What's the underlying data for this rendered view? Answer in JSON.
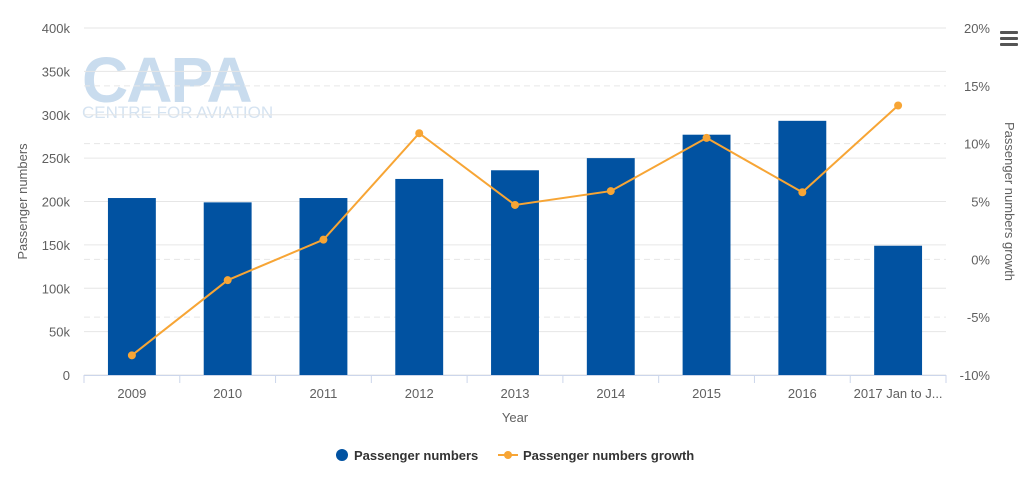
{
  "watermark": {
    "brand": "CAPA",
    "tagline": "CENTRE FOR AVIATION"
  },
  "menu": {
    "icon": "hamburger-menu-icon"
  },
  "chart_data": {
    "type": "bar",
    "categories": [
      "2009",
      "2010",
      "2011",
      "2012",
      "2013",
      "2014",
      "2015",
      "2016",
      "2017 Jan to J..."
    ],
    "xlabel": "Year",
    "ylabel": "Passenger numbers",
    "y2label": "Passenger numbers growth",
    "ylim": [
      0,
      400000
    ],
    "y2lim": [
      -10,
      20
    ],
    "y_ticks": [
      "0",
      "50k",
      "100k",
      "150k",
      "200k",
      "250k",
      "300k",
      "350k",
      "400k"
    ],
    "y2_ticks": [
      "-10%",
      "-5%",
      "0%",
      "5%",
      "10%",
      "15%",
      "20%"
    ],
    "grid": true,
    "legend_position": "bottom-center",
    "series": [
      {
        "name": "Passenger numbers",
        "type": "bar",
        "axis": "left",
        "color": "#0152a1",
        "values": [
          204000,
          199000,
          204000,
          226000,
          236000,
          250000,
          277000,
          293000,
          149000
        ]
      },
      {
        "name": "Passenger numbers growth",
        "type": "line",
        "axis": "right",
        "color": "#f7a535",
        "values": [
          -8.3,
          -1.8,
          1.7,
          10.9,
          4.7,
          5.9,
          10.5,
          5.8,
          13.3
        ]
      }
    ]
  }
}
